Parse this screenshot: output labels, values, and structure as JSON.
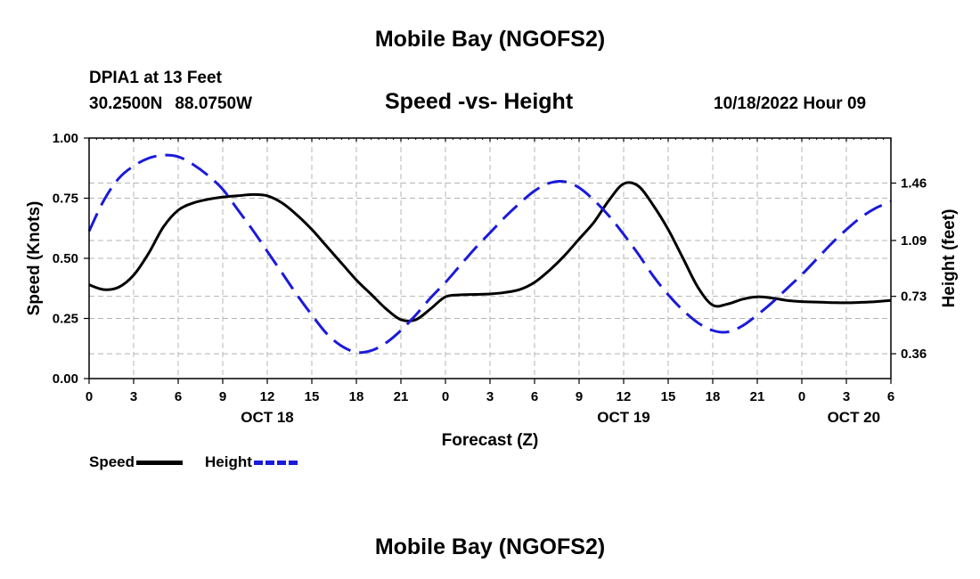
{
  "page": {
    "top_title": "Mobile Bay (NGOFS2)",
    "bottom_title": "Mobile Bay (NGOFS2)",
    "station": "DPIA1 at 13 Feet",
    "lat": "30.2500N",
    "lon": "88.0750W",
    "datetime": "10/18/2022 Hour 09"
  },
  "colors": {
    "speed": "#000000",
    "height": "#1a1adb",
    "grid": "#b4b4b4"
  },
  "chart_data": {
    "type": "line",
    "title": "Speed -vs- Height",
    "xlabel": "Forecast (Z)",
    "ylabel": "Speed (Knots)",
    "y2label": "Height (feet)",
    "ylim": [
      0,
      1
    ],
    "y2lim": [
      0.2,
      1.75
    ],
    "yticks": [
      "0.00",
      "0.25",
      "0.50",
      "0.75",
      "1.00"
    ],
    "y2ticks": [
      "0.36",
      "0.73",
      "1.09",
      "1.46"
    ],
    "x_range_hours": [
      0,
      54
    ],
    "x_tick_labels": [
      "0",
      "3",
      "6",
      "9",
      "12",
      "15",
      "18",
      "21",
      "0",
      "3",
      "6",
      "9",
      "12",
      "15",
      "18",
      "21",
      "0",
      "3",
      "6"
    ],
    "date_labels": [
      {
        "label": "OCT 18",
        "hour": 12
      },
      {
        "label": "OCT 19",
        "hour": 36
      },
      {
        "label": "OCT 20",
        "hour": 51.5
      }
    ],
    "legend": [
      "Speed",
      "Height"
    ],
    "series": [
      {
        "name": "Speed",
        "axis": "left",
        "x": [
          0,
          1,
          2,
          3,
          4,
          5,
          6,
          7,
          8,
          9,
          10,
          11,
          12,
          13,
          14,
          15,
          16,
          17,
          18,
          19,
          20,
          21,
          22,
          23,
          24,
          25,
          26,
          27,
          28,
          29,
          30,
          31,
          32,
          33,
          34,
          35,
          36,
          37,
          38,
          39,
          40,
          41,
          42,
          43,
          44,
          45,
          46,
          47,
          48,
          49,
          50,
          51,
          52,
          53,
          54
        ],
        "values": [
          0.39,
          0.37,
          0.38,
          0.43,
          0.52,
          0.63,
          0.7,
          0.73,
          0.745,
          0.755,
          0.76,
          0.765,
          0.76,
          0.73,
          0.68,
          0.62,
          0.55,
          0.48,
          0.41,
          0.35,
          0.29,
          0.245,
          0.245,
          0.29,
          0.34,
          0.348,
          0.35,
          0.352,
          0.358,
          0.37,
          0.4,
          0.45,
          0.51,
          0.58,
          0.65,
          0.74,
          0.81,
          0.8,
          0.72,
          0.62,
          0.5,
          0.38,
          0.305,
          0.31,
          0.33,
          0.34,
          0.335,
          0.325,
          0.32,
          0.318,
          0.316,
          0.315,
          0.317,
          0.32,
          0.325
        ]
      },
      {
        "name": "Height",
        "axis": "right",
        "x": [
          0,
          1,
          2,
          3,
          4,
          5,
          6,
          7,
          8,
          9,
          10,
          11,
          12,
          13,
          14,
          15,
          16,
          17,
          18,
          19,
          20,
          21,
          22,
          23,
          24,
          25,
          26,
          27,
          28,
          29,
          30,
          31,
          32,
          33,
          34,
          35,
          36,
          37,
          38,
          39,
          40,
          41,
          42,
          43,
          44,
          45,
          46,
          47,
          48,
          49,
          50,
          51,
          52,
          53,
          54
        ],
        "values": [
          1.15,
          1.35,
          1.49,
          1.57,
          1.62,
          1.64,
          1.63,
          1.58,
          1.51,
          1.42,
          1.29,
          1.16,
          1.02,
          0.88,
          0.74,
          0.61,
          0.49,
          0.41,
          0.37,
          0.38,
          0.43,
          0.51,
          0.61,
          0.72,
          0.82,
          0.93,
          1.04,
          1.14,
          1.24,
          1.33,
          1.41,
          1.46,
          1.47,
          1.43,
          1.35,
          1.25,
          1.13,
          1.0,
          0.86,
          0.74,
          0.64,
          0.56,
          0.51,
          0.5,
          0.54,
          0.61,
          0.69,
          0.78,
          0.87,
          0.97,
          1.07,
          1.16,
          1.24,
          1.3,
          1.34
        ]
      }
    ]
  }
}
